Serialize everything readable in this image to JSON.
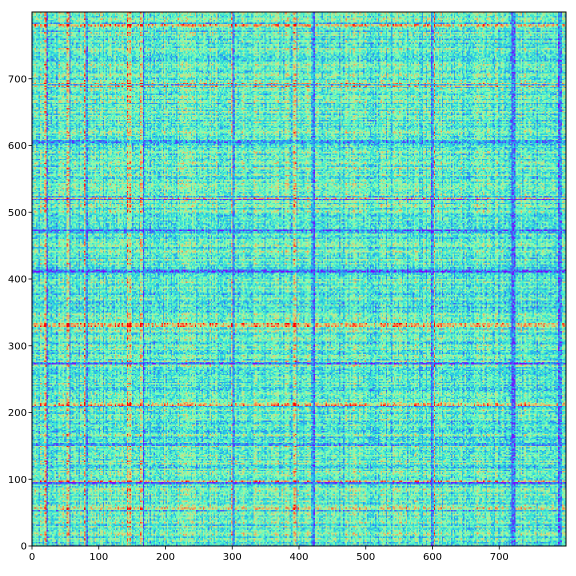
{
  "chart_data": {
    "type": "heatmap",
    "title": "",
    "xlabel": "",
    "ylabel": "",
    "xlim": [
      0,
      800
    ],
    "ylim": [
      0,
      800
    ],
    "y_origin": "bottom",
    "grid": false,
    "colormap": "rainbow",
    "colormap_stops": [
      "#8000ff",
      "#2c7ef7",
      "#2adddd",
      "#80ffb4",
      "#d4dd80",
      "#ff7e41",
      "#ff0000"
    ],
    "dominant_colors": [
      "#2adddd",
      "#80ffb4",
      "#2c7ef7"
    ],
    "value_range": [
      0,
      1
    ],
    "typical_value_range": [
      0.25,
      0.6
    ],
    "texture": "dense noisy matrix with horizontal and vertical stripe banding",
    "x_ticks": [
      0,
      100,
      200,
      300,
      400,
      500,
      600,
      700
    ],
    "y_ticks": [
      0,
      100,
      200,
      300,
      400,
      500,
      600,
      700
    ],
    "x_tick_labels": [
      "0",
      "100",
      "200",
      "300",
      "400",
      "500",
      "600",
      "700"
    ],
    "y_tick_labels": [
      "0",
      "100",
      "200",
      "300",
      "400",
      "500",
      "600",
      "700"
    ],
    "prominent_column_bands": [
      20,
      55,
      80,
      145,
      165,
      300,
      395,
      420,
      600,
      720,
      790
    ],
    "prominent_row_bands": [
      55,
      95,
      150,
      210,
      275,
      330,
      410,
      470,
      520,
      605,
      690,
      780
    ]
  }
}
